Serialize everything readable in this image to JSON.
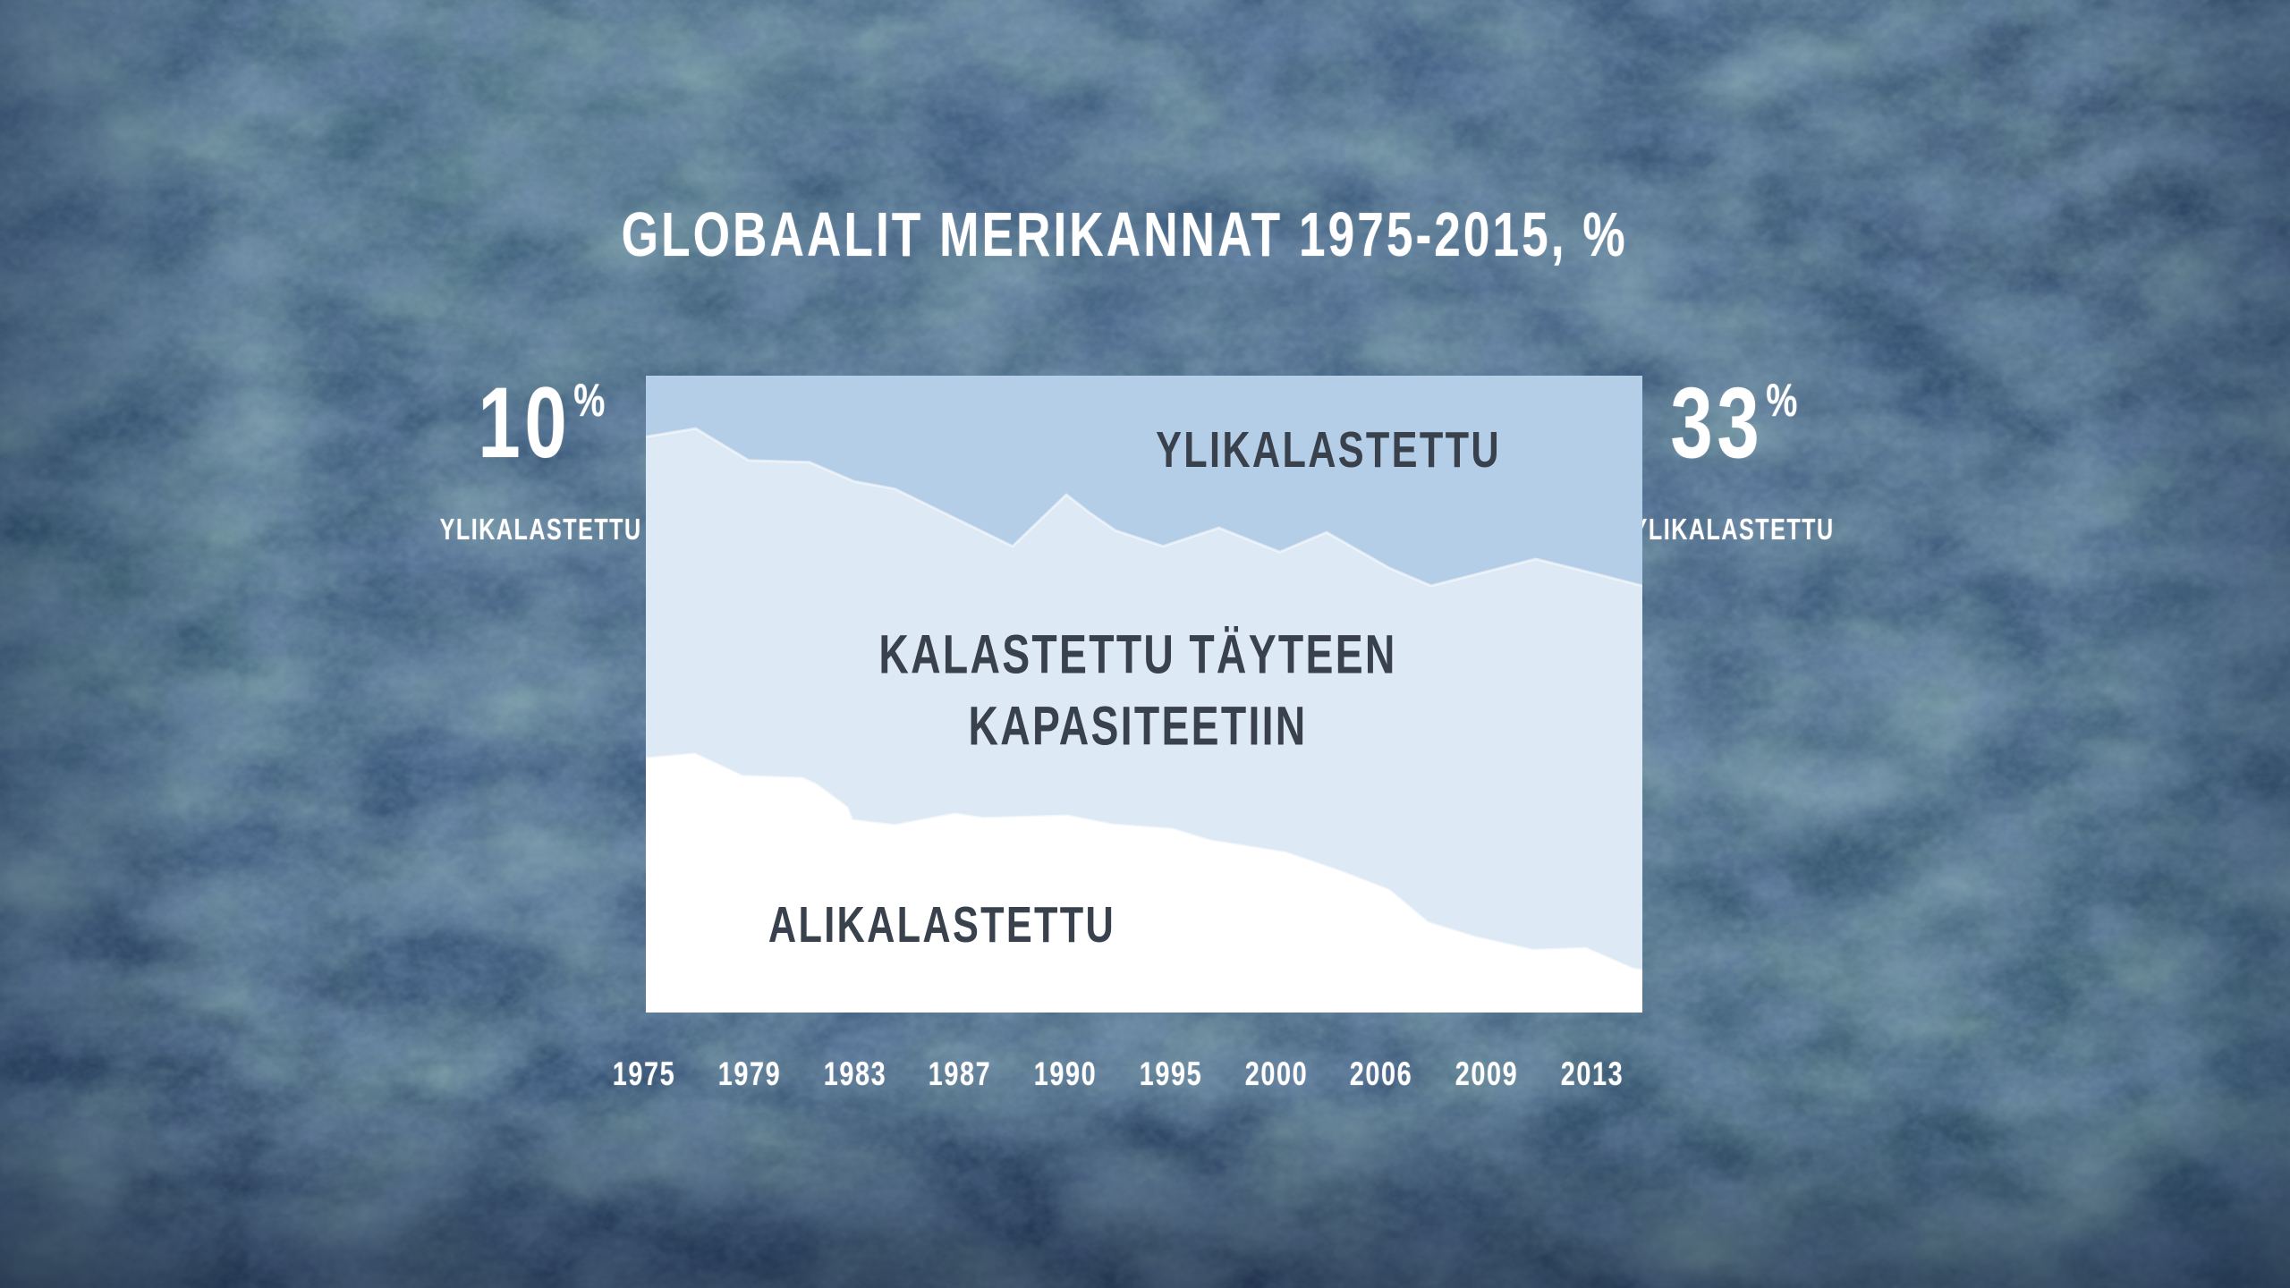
{
  "title": "GLOBAALIT MERIKANNAT 1975-2015, %",
  "annotations": {
    "left": {
      "value": "10",
      "unit": "%",
      "label": "YLIKALASTETTU"
    },
    "right": {
      "value": "33",
      "unit": "%",
      "label": "YLIKALASTETTU"
    }
  },
  "chart_labels": {
    "overfished": "YLIKALASTETTU",
    "full_capacity_line1": "KALASTETTU TÄYTEEN",
    "full_capacity_line2": "KAPASITEETIIN",
    "underfished": "ALIKALASTETTU"
  },
  "colors": {
    "background_base": "#3e5c7e",
    "background_teal": "#4d7b82",
    "background_indigo": "#2f4470",
    "band_overfished": "#b5cee8",
    "band_full_capacity": "#dde9f5",
    "band_underfished": "#ffffff",
    "chart_label_text": "#39414c",
    "light_text": "#ffffff"
  },
  "chart_data": {
    "type": "area",
    "stacked": true,
    "title": "GLOBAALIT MERIKANNAT 1975-2015, %",
    "categories": [
      "1975",
      "1979",
      "1983",
      "1987",
      "1990",
      "1995",
      "2000",
      "2006",
      "2009",
      "2013"
    ],
    "series": [
      {
        "name": "YLIKALASTETTU",
        "values": [
          10,
          13,
          17,
          23,
          19,
          26,
          28,
          30,
          31,
          31
        ]
      },
      {
        "name": "KALASTETTU TÄYTEEN KAPASITEETIIN",
        "values": [
          50,
          50,
          53,
          46,
          50,
          45,
          47,
          50,
          57,
          59
        ]
      },
      {
        "name": "ALIKALASTETTU",
        "values": [
          40,
          37,
          30,
          31,
          31,
          29,
          25,
          20,
          12,
          10
        ]
      }
    ],
    "xlabel": "",
    "ylabel": "",
    "ylim": [
      0,
      100
    ],
    "x_range_years": [
      1975,
      2015
    ],
    "grid": false,
    "legend_position": "labels-inside-areas",
    "end_values": {
      "overfished_start_pct": 10,
      "overfished_end_pct": 33
    },
    "render": {
      "upper_boundary": [
        [
          0,
          9.6
        ],
        [
          5.0,
          8.3
        ],
        [
          10.3,
          13.3
        ],
        [
          16.4,
          13.6
        ],
        [
          20.9,
          16.6
        ],
        [
          25.0,
          17.8
        ],
        [
          36.8,
          26.8
        ],
        [
          42.2,
          18.7
        ],
        [
          44.5,
          21.5
        ],
        [
          47.1,
          24.3
        ],
        [
          51.9,
          26.8
        ],
        [
          57.5,
          23.9
        ],
        [
          63.6,
          27.7
        ],
        [
          68.3,
          24.6
        ],
        [
          74.6,
          30.2
        ],
        [
          78.8,
          33.0
        ],
        [
          89.3,
          28.8
        ],
        [
          95.0,
          31.0
        ],
        [
          100,
          33.0
        ]
      ],
      "lower_boundary": [
        [
          0,
          60.1
        ],
        [
          4.9,
          59.4
        ],
        [
          9.7,
          62.9
        ],
        [
          15.7,
          63.2
        ],
        [
          17.1,
          64.2
        ],
        [
          20.2,
          67.8
        ],
        [
          20.7,
          69.8
        ],
        [
          25.0,
          70.6
        ],
        [
          31.0,
          68.8
        ],
        [
          33.9,
          69.5
        ],
        [
          42.3,
          69.1
        ],
        [
          46.8,
          70.5
        ],
        [
          52.8,
          71.2
        ],
        [
          56.6,
          73.0
        ],
        [
          64.2,
          74.9
        ],
        [
          69.8,
          77.9
        ],
        [
          74.6,
          80.8
        ],
        [
          78.5,
          85.9
        ],
        [
          83.3,
          88.2
        ],
        [
          89.0,
          90.2
        ],
        [
          94.3,
          89.9
        ],
        [
          96.8,
          91.6
        ],
        [
          99.0,
          93.1
        ],
        [
          100,
          93.4
        ]
      ]
    }
  }
}
